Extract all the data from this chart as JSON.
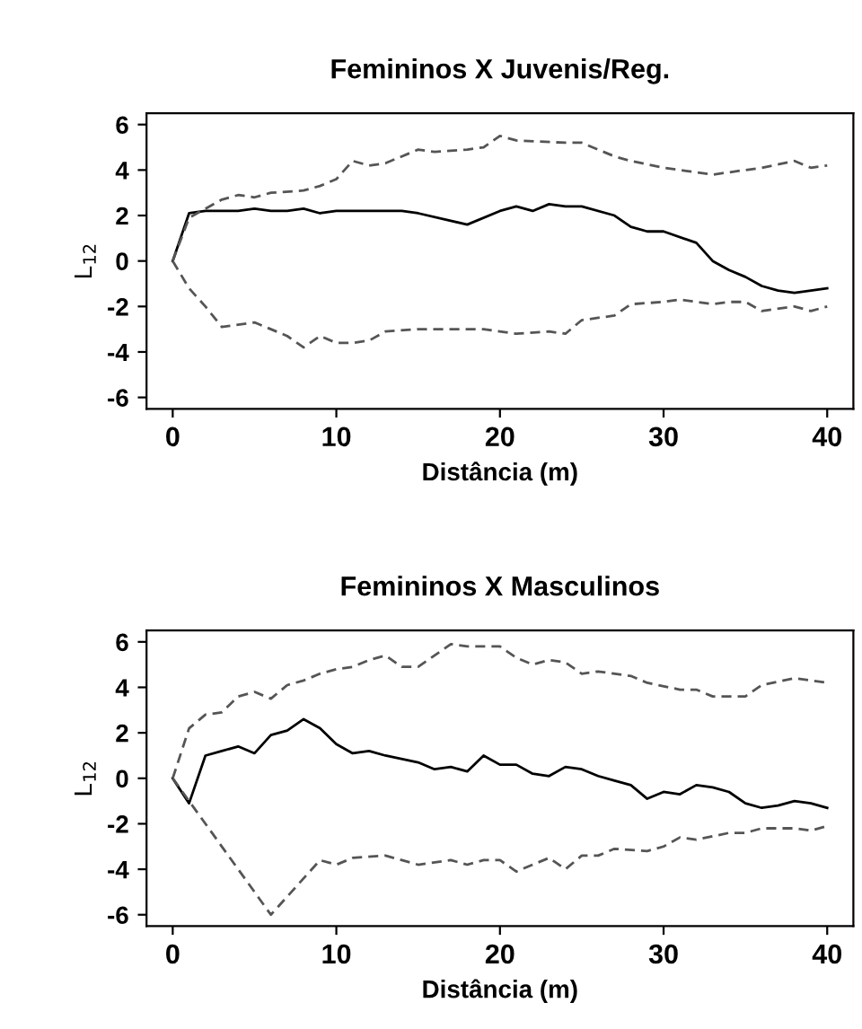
{
  "chart_data": [
    {
      "type": "line",
      "title": "Femininos X Juvenis/Reg.",
      "xlabel": "Distância (m)",
      "ylabel": "L$_{12}$",
      "xlim": [
        -1.6,
        41.6
      ],
      "ylim": [
        -6.5,
        6.5
      ],
      "xticks": [
        0,
        10,
        20,
        30,
        40
      ],
      "yticks": [
        -6,
        -4,
        -2,
        0,
        2,
        4,
        6
      ],
      "grid": false,
      "legend": false,
      "series": [
        {
          "color": "#000000",
          "line_style": "solid",
          "x": [
            0,
            1,
            2,
            3,
            4,
            5,
            6,
            7,
            8,
            9,
            10,
            12,
            14,
            15,
            18,
            20,
            21,
            22,
            23,
            24,
            25,
            27,
            28,
            29,
            30,
            32,
            33,
            34,
            35,
            36,
            37,
            38,
            39,
            40
          ],
          "values": [
            0,
            2.1,
            2.2,
            2.2,
            2.2,
            2.3,
            2.2,
            2.2,
            2.3,
            2.1,
            2.2,
            2.2,
            2.2,
            2.1,
            1.6,
            2.2,
            2.4,
            2.2,
            2.5,
            2.4,
            2.4,
            2.0,
            1.5,
            1.3,
            1.3,
            0.8,
            0.0,
            -0.4,
            -0.7,
            -1.1,
            -1.3,
            -1.4,
            -1.3,
            -1.2
          ]
        },
        {
          "color": "#555555",
          "line_style": "dashed",
          "x": [
            0,
            1,
            2,
            3,
            4,
            5,
            6,
            8,
            9,
            10,
            11,
            12,
            13,
            15,
            16,
            18,
            19,
            20,
            21,
            24,
            25,
            27,
            28,
            30,
            31,
            33,
            34,
            36,
            38,
            39,
            40
          ],
          "values": [
            0,
            1.9,
            2.3,
            2.7,
            2.9,
            2.8,
            3.0,
            3.1,
            3.3,
            3.6,
            4.4,
            4.2,
            4.3,
            4.9,
            4.8,
            4.9,
            5.0,
            5.5,
            5.3,
            5.2,
            5.2,
            4.6,
            4.4,
            4.1,
            4.0,
            3.8,
            3.9,
            4.1,
            4.4,
            4.1,
            4.2
          ]
        },
        {
          "color": "#555555",
          "line_style": "dashed",
          "x": [
            0,
            1,
            2,
            3,
            5,
            7,
            8,
            9,
            10,
            11,
            12,
            13,
            15,
            19,
            21,
            23,
            24,
            25,
            27,
            28,
            30,
            31,
            33,
            34,
            35,
            36,
            38,
            39,
            40
          ],
          "values": [
            0,
            -1.2,
            -2.0,
            -2.9,
            -2.7,
            -3.3,
            -3.8,
            -3.3,
            -3.6,
            -3.6,
            -3.5,
            -3.1,
            -3.0,
            -3.0,
            -3.2,
            -3.1,
            -3.2,
            -2.6,
            -2.4,
            -1.9,
            -1.8,
            -1.7,
            -1.9,
            -1.8,
            -1.8,
            -2.2,
            -2.0,
            -2.2,
            -2.0
          ]
        }
      ]
    },
    {
      "type": "line",
      "title": "Femininos X Masculinos",
      "xlabel": "Distância (m)",
      "ylabel": "L$_{12}$",
      "xlim": [
        -1.6,
        41.6
      ],
      "ylim": [
        -6.5,
        6.5
      ],
      "xticks": [
        0,
        10,
        20,
        30,
        40
      ],
      "yticks": [
        -6,
        -4,
        -2,
        0,
        2,
        4,
        6
      ],
      "grid": false,
      "legend": false,
      "series": [
        {
          "color": "#000000",
          "line_style": "solid",
          "x": [
            0,
            1,
            2,
            3,
            4,
            5,
            6,
            7,
            8,
            9,
            10,
            11,
            12,
            13,
            15,
            16,
            17,
            18,
            19,
            20,
            21,
            22,
            23,
            24,
            25,
            26,
            27,
            28,
            29,
            30,
            31,
            32,
            33,
            34,
            35,
            36,
            37,
            38,
            39,
            40
          ],
          "values": [
            0,
            -1.1,
            1.0,
            1.2,
            1.4,
            1.1,
            1.9,
            2.1,
            2.6,
            2.2,
            1.5,
            1.1,
            1.2,
            1.0,
            0.7,
            0.4,
            0.5,
            0.3,
            1.0,
            0.6,
            0.6,
            0.2,
            0.1,
            0.5,
            0.4,
            0.1,
            -0.1,
            -0.3,
            -0.9,
            -0.6,
            -0.7,
            -0.3,
            -0.4,
            -0.6,
            -1.1,
            -1.3,
            -1.2,
            -1.0,
            -1.1,
            -1.3
          ]
        },
        {
          "color": "#555555",
          "line_style": "dashed",
          "x": [
            0,
            1,
            2,
            3,
            4,
            5,
            6,
            7,
            8,
            9,
            10,
            11,
            12,
            13,
            14,
            15,
            17,
            18,
            20,
            21,
            22,
            23,
            24,
            25,
            26,
            28,
            29,
            31,
            32,
            33,
            35,
            36,
            38,
            40
          ],
          "values": [
            0,
            2.2,
            2.8,
            2.9,
            3.6,
            3.8,
            3.5,
            4.1,
            4.3,
            4.6,
            4.8,
            4.9,
            5.2,
            5.4,
            4.9,
            4.9,
            5.9,
            5.8,
            5.8,
            5.3,
            5.0,
            5.2,
            5.1,
            4.6,
            4.7,
            4.5,
            4.2,
            3.9,
            3.9,
            3.6,
            3.6,
            4.1,
            4.4,
            4.2
          ]
        },
        {
          "color": "#555555",
          "line_style": "dashed",
          "x": [
            0,
            6,
            7,
            9,
            10,
            11,
            13,
            15,
            17,
            18,
            19,
            20,
            21,
            23,
            24,
            25,
            26,
            27,
            29,
            30,
            31,
            32,
            34,
            35,
            36,
            38,
            39,
            40
          ],
          "values": [
            0,
            -6.0,
            -5.2,
            -3.6,
            -3.8,
            -3.5,
            -3.4,
            -3.8,
            -3.6,
            -3.8,
            -3.6,
            -3.6,
            -4.1,
            -3.5,
            -4.0,
            -3.4,
            -3.4,
            -3.1,
            -3.2,
            -3.0,
            -2.6,
            -2.7,
            -2.4,
            -2.4,
            -2.2,
            -2.2,
            -2.3,
            -2.1
          ]
        }
      ]
    }
  ]
}
